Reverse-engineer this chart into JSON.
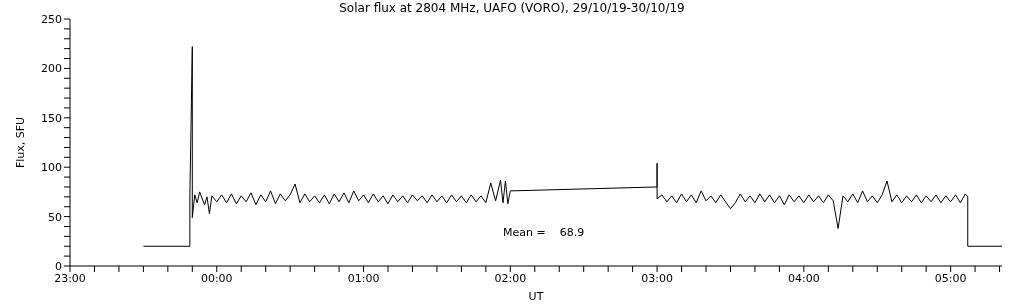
{
  "chart_data": {
    "type": "line",
    "title": "Solar flux at 2804 MHz, UAFO (VORO),  29/10/19-30/10/19",
    "xlabel": "UT",
    "ylabel": "Flux, SFU",
    "annotations": [
      "Mean =    68.9"
    ],
    "xlim": [
      "--10-29T23:00",
      "--10-30T05:21"
    ],
    "xticks": [
      {
        "value": "--10-29T23:00",
        "label": "23:00"
      },
      {
        "value": "--10-29T23:10",
        "label": null
      },
      {
        "value": "--10-29T23:20",
        "label": null
      },
      {
        "value": "--10-29T23:30",
        "label": null
      },
      {
        "value": "--10-29T23:40",
        "label": null
      },
      {
        "value": "--10-29T23:50",
        "label": null
      },
      {
        "value": "--10-30T00:00",
        "label": "00:00"
      },
      {
        "value": "--10-30T00:10",
        "label": null
      },
      {
        "value": "--10-30T00:20",
        "label": null
      },
      {
        "value": "--10-30T00:30",
        "label": null
      },
      {
        "value": "--10-30T00:40",
        "label": null
      },
      {
        "value": "--10-30T00:50",
        "label": null
      },
      {
        "value": "--10-30T01:00",
        "label": "01:00"
      },
      {
        "value": "--10-30T01:10",
        "label": null
      },
      {
        "value": "--10-30T01:20",
        "label": null
      },
      {
        "value": "--10-30T01:30",
        "label": null
      },
      {
        "value": "--10-30T01:40",
        "label": null
      },
      {
        "value": "--10-30T01:50",
        "label": null
      },
      {
        "value": "--10-30T02:00",
        "label": "02:00"
      },
      {
        "value": "--10-30T02:10",
        "label": null
      },
      {
        "value": "--10-30T02:20",
        "label": null
      },
      {
        "value": "--10-30T02:30",
        "label": null
      },
      {
        "value": "--10-30T02:40",
        "label": null
      },
      {
        "value": "--10-30T02:50",
        "label": null
      },
      {
        "value": "--10-30T03:00",
        "label": "03:00"
      },
      {
        "value": "--10-30T03:10",
        "label": null
      },
      {
        "value": "--10-30T03:20",
        "label": null
      },
      {
        "value": "--10-30T03:30",
        "label": null
      },
      {
        "value": "--10-30T03:40",
        "label": null
      },
      {
        "value": "--10-30T03:50",
        "label": null
      },
      {
        "value": "--10-30T04:00",
        "label": "04:00"
      },
      {
        "value": "--10-30T04:10",
        "label": null
      },
      {
        "value": "--10-30T04:20",
        "label": null
      },
      {
        "value": "--10-30T04:30",
        "label": null
      },
      {
        "value": "--10-30T04:40",
        "label": null
      },
      {
        "value": "--10-30T04:50",
        "label": null
      },
      {
        "value": "--10-30T05:00",
        "label": "05:00"
      },
      {
        "value": "--10-30T05:10",
        "label": null
      },
      {
        "value": "--10-30T05:20",
        "label": null
      }
    ],
    "ylim": [
      0,
      250
    ],
    "yticks": [
      0,
      {
        "value": 10,
        "label": null
      },
      {
        "value": 20,
        "label": null
      },
      {
        "value": 30,
        "label": null
      },
      {
        "value": 40,
        "label": null
      },
      50,
      {
        "value": 60,
        "label": null
      },
      {
        "value": 70,
        "label": null
      },
      {
        "value": 80,
        "label": null
      },
      {
        "value": 90,
        "label": null
      },
      100,
      {
        "value": 110,
        "label": null
      },
      {
        "value": 120,
        "label": null
      },
      {
        "value": 130,
        "label": null
      },
      {
        "value": 140,
        "label": null
      },
      150,
      {
        "value": 160,
        "label": null
      },
      {
        "value": 170,
        "label": null
      },
      {
        "value": 180,
        "label": null
      },
      {
        "value": 190,
        "label": null
      },
      200,
      {
        "value": 210,
        "label": null
      },
      {
        "value": 220,
        "label": null
      },
      {
        "value": 230,
        "label": null
      },
      {
        "value": 240,
        "label": null
      },
      250
    ],
    "marker": "none",
    "line_style": "solid",
    "series": [
      {
        "color": "#000000",
        "x": [
          "--10-29T23:30",
          "--10-29T23:49",
          "--10-29T23:49",
          "--10-29T23:50",
          "--10-29T23:50",
          "--10-29T23:51",
          "--10-29T23:52",
          "--10-29T23:53",
          "--10-29T23:55",
          "--10-29T23:56",
          "--10-29T23:57",
          "--10-29T23:58",
          "--10-30T00:00",
          "--10-30T00:02",
          "--10-30T00:04",
          "--10-30T00:06",
          "--10-30T00:08",
          "--10-30T00:10",
          "--10-30T00:12",
          "--10-30T00:14",
          "--10-30T00:16",
          "--10-30T00:18",
          "--10-30T00:20",
          "--10-30T00:22",
          "--10-30T00:24",
          "--10-30T00:26",
          "--10-30T00:28",
          "--10-30T00:30",
          "--10-30T00:32",
          "--10-30T00:34",
          "--10-30T00:36",
          "--10-30T00:38",
          "--10-30T00:40",
          "--10-30T00:42",
          "--10-30T00:44",
          "--10-30T00:46",
          "--10-30T00:48",
          "--10-30T00:50",
          "--10-30T00:52",
          "--10-30T00:54",
          "--10-30T00:56",
          "--10-30T00:58",
          "--10-30T01:00",
          "--10-30T01:02",
          "--10-30T01:04",
          "--10-30T01:06",
          "--10-30T01:08",
          "--10-30T01:10",
          "--10-30T01:12",
          "--10-30T01:14",
          "--10-30T01:16",
          "--10-30T01:18",
          "--10-30T01:20",
          "--10-30T01:22",
          "--10-30T01:24",
          "--10-30T01:26",
          "--10-30T01:28",
          "--10-30T01:30",
          "--10-30T01:32",
          "--10-30T01:34",
          "--10-30T01:36",
          "--10-30T01:38",
          "--10-30T01:40",
          "--10-30T01:42",
          "--10-30T01:44",
          "--10-30T01:46",
          "--10-30T01:48",
          "--10-30T01:50",
          "--10-30T01:52",
          "--10-30T01:54",
          "--10-30T01:56",
          "--10-30T01:57",
          "--10-30T01:58",
          "--10-30T01:59",
          "--10-30T02:00",
          "--10-30T03:00",
          "--10-30T03:00",
          "--10-30T03:00",
          "--10-30T03:02",
          "--10-30T03:04",
          "--10-30T03:06",
          "--10-30T03:08",
          "--10-30T03:10",
          "--10-30T03:12",
          "--10-30T03:14",
          "--10-30T03:16",
          "--10-30T03:18",
          "--10-30T03:20",
          "--10-30T03:22",
          "--10-30T03:24",
          "--10-30T03:26",
          "--10-30T03:28",
          "--10-30T03:30",
          "--10-30T03:32",
          "--10-30T03:34",
          "--10-30T03:36",
          "--10-30T03:38",
          "--10-30T03:40",
          "--10-30T03:42",
          "--10-30T03:44",
          "--10-30T03:46",
          "--10-30T03:48",
          "--10-30T03:50",
          "--10-30T03:52",
          "--10-30T03:54",
          "--10-30T03:56",
          "--10-30T03:58",
          "--10-30T04:00",
          "--10-30T04:02",
          "--10-30T04:04",
          "--10-30T04:06",
          "--10-30T04:08",
          "--10-30T04:10",
          "--10-30T04:12",
          "--10-30T04:14",
          "--10-30T04:16",
          "--10-30T04:18",
          "--10-30T04:20",
          "--10-30T04:22",
          "--10-30T04:24",
          "--10-30T04:26",
          "--10-30T04:28",
          "--10-30T04:30",
          "--10-30T04:32",
          "--10-30T04:34",
          "--10-30T04:36",
          "--10-30T04:38",
          "--10-30T04:40",
          "--10-30T04:42",
          "--10-30T04:44",
          "--10-30T04:46",
          "--10-30T04:48",
          "--10-30T04:50",
          "--10-30T04:52",
          "--10-30T04:54",
          "--10-30T04:56",
          "--10-30T04:58",
          "--10-30T05:00",
          "--10-30T05:02",
          "--10-30T05:04",
          "--10-30T05:06",
          "--10-30T05:07",
          "--10-30T05:07",
          "--10-30T05:21"
        ],
        "values": [
          20,
          20,
          70,
          222,
          49,
          72,
          64,
          75,
          62,
          70,
          53,
          71,
          65,
          72,
          64,
          73,
          63,
          71,
          65,
          74,
          62,
          72,
          65,
          76,
          63,
          73,
          66,
          72,
          83,
          64,
          73,
          65,
          71,
          64,
          72,
          63,
          73,
          65,
          74,
          64,
          76,
          66,
          72,
          64,
          73,
          65,
          71,
          63,
          72,
          65,
          71,
          64,
          72,
          66,
          71,
          64,
          72,
          65,
          71,
          64,
          72,
          65,
          71,
          64,
          72,
          65,
          71,
          64,
          84,
          66,
          87,
          64,
          86,
          63,
          76,
          80,
          104,
          68,
          72,
          65,
          71,
          64,
          73,
          65,
          72,
          64,
          76,
          66,
          71,
          64,
          72,
          65,
          58,
          64,
          73,
          65,
          71,
          64,
          73,
          65,
          72,
          64,
          71,
          62,
          72,
          65,
          71,
          64,
          72,
          65,
          71,
          64,
          72,
          66,
          38,
          71,
          65,
          73,
          64,
          76,
          65,
          71,
          64,
          72,
          86,
          65,
          72,
          64,
          71,
          65,
          72,
          64,
          71,
          65,
          72,
          64,
          71,
          65,
          72,
          64,
          73,
          70,
          20,
          20
        ]
      }
    ]
  }
}
